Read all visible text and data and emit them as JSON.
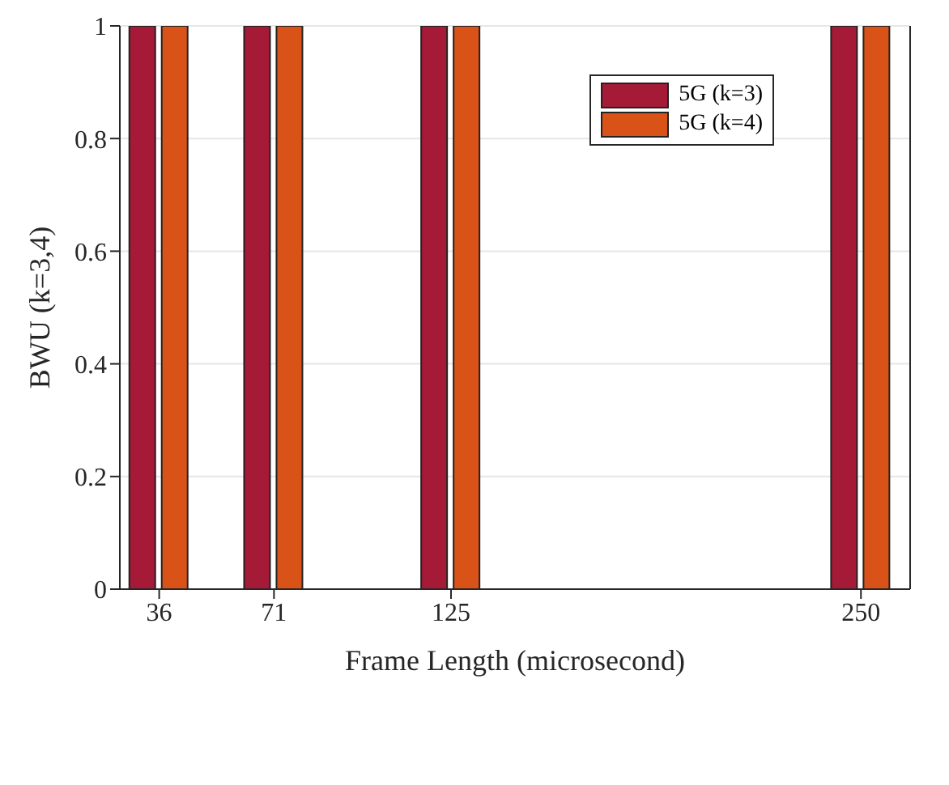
{
  "chart_data": {
    "type": "bar",
    "xlabel": "Frame Length (microsecond)",
    "ylabel": "BWU (k=3,4)",
    "x": [
      36,
      71,
      125,
      250
    ],
    "series": [
      {
        "name": "5G (k=3)",
        "color": "#a51a36",
        "values": [
          1,
          1,
          1,
          1
        ]
      },
      {
        "name": "5G (k=4)",
        "color": "#d95319",
        "values": [
          1,
          1,
          1,
          1
        ]
      }
    ],
    "xlim": [
      24,
      265
    ],
    "xticks": [
      36,
      71,
      125,
      250
    ],
    "ylim": [
      0,
      1
    ],
    "yticks": [
      0,
      0.2,
      0.4,
      0.6,
      0.8,
      1
    ],
    "grid": "y",
    "legend": "top right"
  }
}
